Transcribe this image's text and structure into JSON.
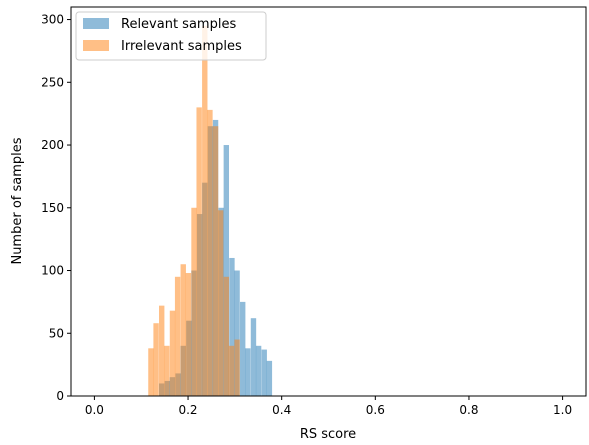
{
  "chart_data": {
    "type": "bar",
    "subtype": "overlapping-histogram",
    "title": "",
    "xlabel": "RS score",
    "ylabel": "Number of samples",
    "xlim": [
      -0.05,
      1.05
    ],
    "ylim": [
      0,
      310
    ],
    "xticks": [
      "0.0",
      "0.2",
      "0.4",
      "0.6",
      "0.8",
      "1.0"
    ],
    "yticks": [
      "0",
      "50",
      "100",
      "150",
      "200",
      "250",
      "300"
    ],
    "bin_width": 0.0115,
    "grid": false,
    "legend_position": "top-left",
    "series": [
      {
        "name": "Relevant samples",
        "color": "#1f77b4",
        "bins": [
          {
            "x": 0.138,
            "y": 10
          },
          {
            "x": 0.15,
            "y": 12
          },
          {
            "x": 0.161,
            "y": 15
          },
          {
            "x": 0.173,
            "y": 18
          },
          {
            "x": 0.184,
            "y": 40
          },
          {
            "x": 0.196,
            "y": 60
          },
          {
            "x": 0.207,
            "y": 100
          },
          {
            "x": 0.219,
            "y": 145
          },
          {
            "x": 0.23,
            "y": 170
          },
          {
            "x": 0.242,
            "y": 215
          },
          {
            "x": 0.253,
            "y": 220
          },
          {
            "x": 0.265,
            "y": 150
          },
          {
            "x": 0.276,
            "y": 200
          },
          {
            "x": 0.288,
            "y": 110
          },
          {
            "x": 0.299,
            "y": 100
          },
          {
            "x": 0.311,
            "y": 75
          },
          {
            "x": 0.322,
            "y": 38
          },
          {
            "x": 0.334,
            "y": 62
          },
          {
            "x": 0.345,
            "y": 40
          },
          {
            "x": 0.357,
            "y": 37
          },
          {
            "x": 0.368,
            "y": 28
          }
        ]
      },
      {
        "name": "Irrelevant samples",
        "color": "#ff7f0e",
        "bins": [
          {
            "x": 0.115,
            "y": 38
          },
          {
            "x": 0.126,
            "y": 58
          },
          {
            "x": 0.138,
            "y": 72
          },
          {
            "x": 0.149,
            "y": 40
          },
          {
            "x": 0.161,
            "y": 68
          },
          {
            "x": 0.172,
            "y": 95
          },
          {
            "x": 0.184,
            "y": 105
          },
          {
            "x": 0.195,
            "y": 98
          },
          {
            "x": 0.207,
            "y": 150
          },
          {
            "x": 0.218,
            "y": 230
          },
          {
            "x": 0.23,
            "y": 295
          },
          {
            "x": 0.241,
            "y": 228
          },
          {
            "x": 0.253,
            "y": 215
          },
          {
            "x": 0.264,
            "y": 148
          },
          {
            "x": 0.276,
            "y": 95
          },
          {
            "x": 0.287,
            "y": 40
          },
          {
            "x": 0.299,
            "y": 45
          }
        ]
      }
    ]
  }
}
